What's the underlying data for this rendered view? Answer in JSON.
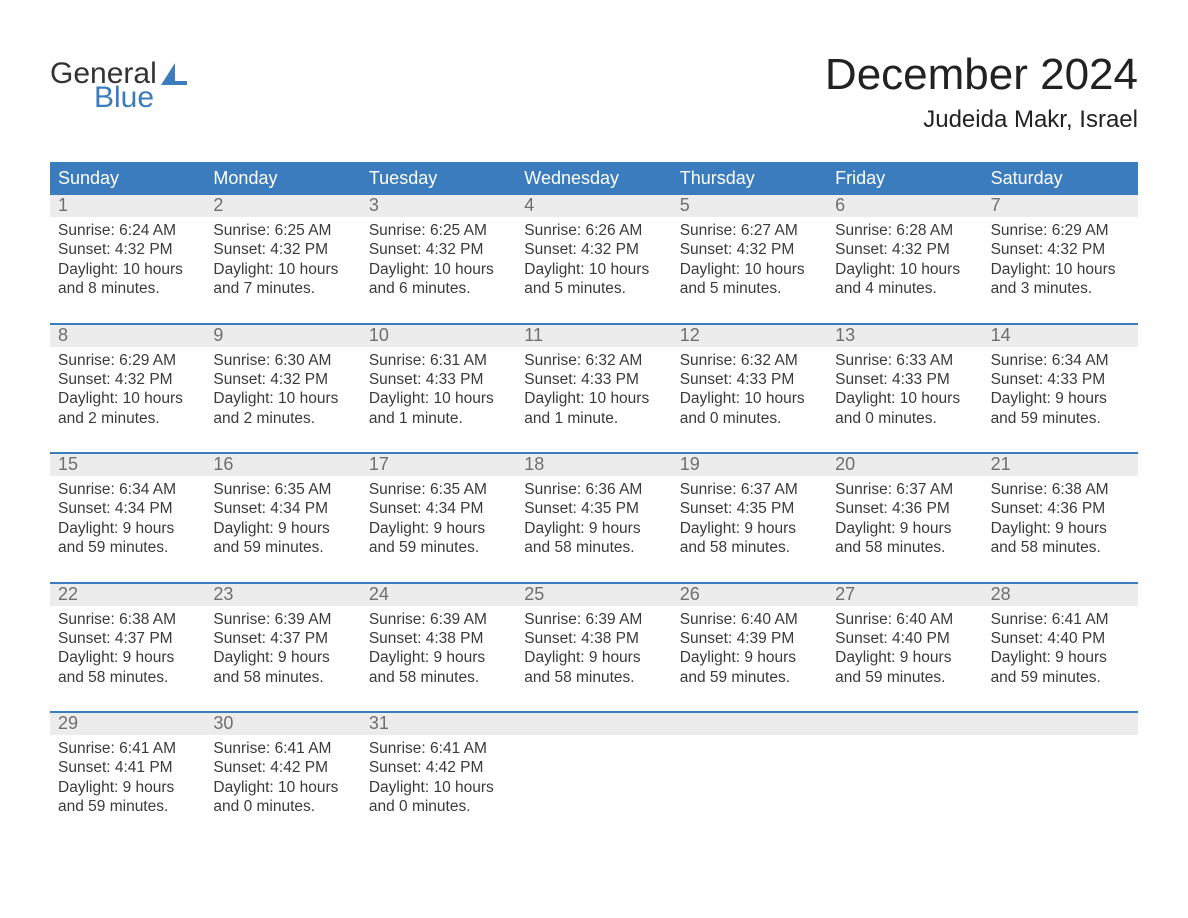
{
  "brand": {
    "word1": "General",
    "word2": "Blue",
    "word1_color": "#333333",
    "word2_color": "#3b7cbf",
    "sail_color": "#3b7cbf"
  },
  "title": "December 2024",
  "location": "Judeida Makr, Israel",
  "header_bg": "#3b7cbf",
  "header_fg": "#ffffff",
  "daynum_bg": "#ececec",
  "daynum_fg": "#6f6f6f",
  "rule_color": "#3b7cbf",
  "days_of_week": [
    "Sunday",
    "Monday",
    "Tuesday",
    "Wednesday",
    "Thursday",
    "Friday",
    "Saturday"
  ],
  "weeks": [
    [
      {
        "n": "1",
        "sunrise": "6:24 AM",
        "sunset": "4:32 PM",
        "dl1": "Daylight: 10 hours",
        "dl2": "and 8 minutes."
      },
      {
        "n": "2",
        "sunrise": "6:25 AM",
        "sunset": "4:32 PM",
        "dl1": "Daylight: 10 hours",
        "dl2": "and 7 minutes."
      },
      {
        "n": "3",
        "sunrise": "6:25 AM",
        "sunset": "4:32 PM",
        "dl1": "Daylight: 10 hours",
        "dl2": "and 6 minutes."
      },
      {
        "n": "4",
        "sunrise": "6:26 AM",
        "sunset": "4:32 PM",
        "dl1": "Daylight: 10 hours",
        "dl2": "and 5 minutes."
      },
      {
        "n": "5",
        "sunrise": "6:27 AM",
        "sunset": "4:32 PM",
        "dl1": "Daylight: 10 hours",
        "dl2": "and 5 minutes."
      },
      {
        "n": "6",
        "sunrise": "6:28 AM",
        "sunset": "4:32 PM",
        "dl1": "Daylight: 10 hours",
        "dl2": "and 4 minutes."
      },
      {
        "n": "7",
        "sunrise": "6:29 AM",
        "sunset": "4:32 PM",
        "dl1": "Daylight: 10 hours",
        "dl2": "and 3 minutes."
      }
    ],
    [
      {
        "n": "8",
        "sunrise": "6:29 AM",
        "sunset": "4:32 PM",
        "dl1": "Daylight: 10 hours",
        "dl2": "and 2 minutes."
      },
      {
        "n": "9",
        "sunrise": "6:30 AM",
        "sunset": "4:32 PM",
        "dl1": "Daylight: 10 hours",
        "dl2": "and 2 minutes."
      },
      {
        "n": "10",
        "sunrise": "6:31 AM",
        "sunset": "4:33 PM",
        "dl1": "Daylight: 10 hours",
        "dl2": "and 1 minute."
      },
      {
        "n": "11",
        "sunrise": "6:32 AM",
        "sunset": "4:33 PM",
        "dl1": "Daylight: 10 hours",
        "dl2": "and 1 minute."
      },
      {
        "n": "12",
        "sunrise": "6:32 AM",
        "sunset": "4:33 PM",
        "dl1": "Daylight: 10 hours",
        "dl2": "and 0 minutes."
      },
      {
        "n": "13",
        "sunrise": "6:33 AM",
        "sunset": "4:33 PM",
        "dl1": "Daylight: 10 hours",
        "dl2": "and 0 minutes."
      },
      {
        "n": "14",
        "sunrise": "6:34 AM",
        "sunset": "4:33 PM",
        "dl1": "Daylight: 9 hours",
        "dl2": "and 59 minutes."
      }
    ],
    [
      {
        "n": "15",
        "sunrise": "6:34 AM",
        "sunset": "4:34 PM",
        "dl1": "Daylight: 9 hours",
        "dl2": "and 59 minutes."
      },
      {
        "n": "16",
        "sunrise": "6:35 AM",
        "sunset": "4:34 PM",
        "dl1": "Daylight: 9 hours",
        "dl2": "and 59 minutes."
      },
      {
        "n": "17",
        "sunrise": "6:35 AM",
        "sunset": "4:34 PM",
        "dl1": "Daylight: 9 hours",
        "dl2": "and 59 minutes."
      },
      {
        "n": "18",
        "sunrise": "6:36 AM",
        "sunset": "4:35 PM",
        "dl1": "Daylight: 9 hours",
        "dl2": "and 58 minutes."
      },
      {
        "n": "19",
        "sunrise": "6:37 AM",
        "sunset": "4:35 PM",
        "dl1": "Daylight: 9 hours",
        "dl2": "and 58 minutes."
      },
      {
        "n": "20",
        "sunrise": "6:37 AM",
        "sunset": "4:36 PM",
        "dl1": "Daylight: 9 hours",
        "dl2": "and 58 minutes."
      },
      {
        "n": "21",
        "sunrise": "6:38 AM",
        "sunset": "4:36 PM",
        "dl1": "Daylight: 9 hours",
        "dl2": "and 58 minutes."
      }
    ],
    [
      {
        "n": "22",
        "sunrise": "6:38 AM",
        "sunset": "4:37 PM",
        "dl1": "Daylight: 9 hours",
        "dl2": "and 58 minutes."
      },
      {
        "n": "23",
        "sunrise": "6:39 AM",
        "sunset": "4:37 PM",
        "dl1": "Daylight: 9 hours",
        "dl2": "and 58 minutes."
      },
      {
        "n": "24",
        "sunrise": "6:39 AM",
        "sunset": "4:38 PM",
        "dl1": "Daylight: 9 hours",
        "dl2": "and 58 minutes."
      },
      {
        "n": "25",
        "sunrise": "6:39 AM",
        "sunset": "4:38 PM",
        "dl1": "Daylight: 9 hours",
        "dl2": "and 58 minutes."
      },
      {
        "n": "26",
        "sunrise": "6:40 AM",
        "sunset": "4:39 PM",
        "dl1": "Daylight: 9 hours",
        "dl2": "and 59 minutes."
      },
      {
        "n": "27",
        "sunrise": "6:40 AM",
        "sunset": "4:40 PM",
        "dl1": "Daylight: 9 hours",
        "dl2": "and 59 minutes."
      },
      {
        "n": "28",
        "sunrise": "6:41 AM",
        "sunset": "4:40 PM",
        "dl1": "Daylight: 9 hours",
        "dl2": "and 59 minutes."
      }
    ],
    [
      {
        "n": "29",
        "sunrise": "6:41 AM",
        "sunset": "4:41 PM",
        "dl1": "Daylight: 9 hours",
        "dl2": "and 59 minutes."
      },
      {
        "n": "30",
        "sunrise": "6:41 AM",
        "sunset": "4:42 PM",
        "dl1": "Daylight: 10 hours",
        "dl2": "and 0 minutes."
      },
      {
        "n": "31",
        "sunrise": "6:41 AM",
        "sunset": "4:42 PM",
        "dl1": "Daylight: 10 hours",
        "dl2": "and 0 minutes."
      },
      null,
      null,
      null,
      null
    ]
  ]
}
